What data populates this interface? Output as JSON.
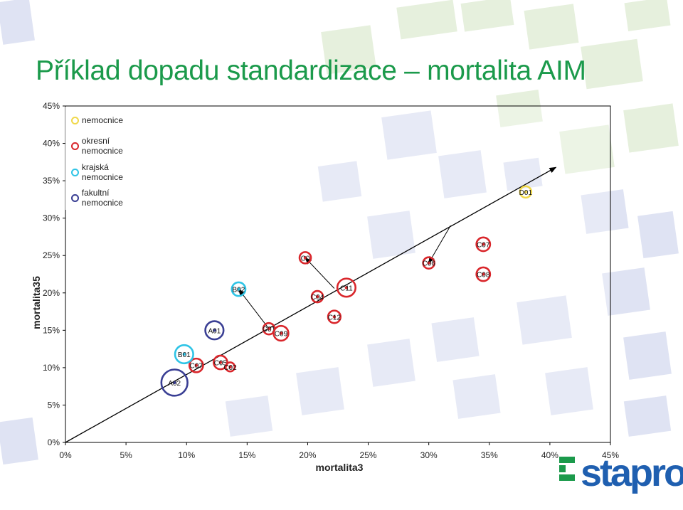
{
  "slide": {
    "title": "Příklad dopadu standardizace – mortalita AIM"
  },
  "colors": {
    "title": "#1b9a4b",
    "nemocnice": "#f0d84a",
    "okresni": "#d9262b",
    "krajska": "#2fc4e6",
    "fakultni": "#3a3f94",
    "arrow": "#000000",
    "deco_blue": "#dfe3f3",
    "deco_green": "#e6f0dd"
  },
  "legend": {
    "items": [
      {
        "label": "nemocnice",
        "color": "#f0d84a"
      },
      {
        "label": "okresní nemocnice",
        "color": "#d9262b"
      },
      {
        "label": "krajská nemocnice",
        "color": "#2fc4e6"
      },
      {
        "label": "fakultní nemocnice",
        "color": "#3a3f94"
      }
    ]
  },
  "chart_data": {
    "type": "scatter",
    "title": "",
    "xlabel": "mortalita3",
    "ylabel": "mortalita35",
    "xlim": [
      0,
      0.45
    ],
    "ylim": [
      0,
      0.45
    ],
    "xticks": [
      "0%",
      "5%",
      "10%",
      "15%",
      "20%",
      "25%",
      "30%",
      "35%",
      "40%",
      "45%"
    ],
    "yticks": [
      "0%",
      "5%",
      "10%",
      "15%",
      "20%",
      "25%",
      "30%",
      "35%",
      "40%",
      "45%"
    ],
    "grid": false,
    "legend_position": "top-left",
    "points": [
      {
        "label": "D01",
        "type": "nemocnice",
        "x": 0.38,
        "y": 0.335,
        "size": 1
      },
      {
        "label": "C07",
        "type": "okresni",
        "x": 0.345,
        "y": 0.265,
        "size": 1.2
      },
      {
        "label": "C08",
        "type": "okresni",
        "x": 0.345,
        "y": 0.225,
        "size": 1.2
      },
      {
        "label": "C06",
        "type": "okresni",
        "x": 0.3,
        "y": 0.24,
        "size": 1
      },
      {
        "label": "C0",
        "type": "okresni",
        "x": 0.198,
        "y": 0.247,
        "size": 1
      },
      {
        "label": "C04",
        "type": "okresni",
        "x": 0.208,
        "y": 0.195,
        "size": 1
      },
      {
        "label": "C11",
        "type": "okresni",
        "x": 0.232,
        "y": 0.207,
        "size": 1.6
      },
      {
        "label": "C12",
        "type": "okresni",
        "x": 0.222,
        "y": 0.168,
        "size": 1.1
      },
      {
        "label": "C01",
        "type": "okresni",
        "x": 0.168,
        "y": 0.152,
        "size": 1
      },
      {
        "label": "C09",
        "type": "okresni",
        "x": 0.178,
        "y": 0.146,
        "size": 1.3
      },
      {
        "label": "C05",
        "type": "okresni",
        "x": 0.128,
        "y": 0.107,
        "size": 1.2
      },
      {
        "label": "C02",
        "type": "okresni",
        "x": 0.136,
        "y": 0.101,
        "size": 0.8
      },
      {
        "label": "C07",
        "type": "okresni",
        "x": 0.108,
        "y": 0.103,
        "size": 1.2
      },
      {
        "label": "B02",
        "type": "krajska",
        "x": 0.143,
        "y": 0.205,
        "size": 1.2
      },
      {
        "label": "B01",
        "type": "krajska",
        "x": 0.098,
        "y": 0.118,
        "size": 1.6
      },
      {
        "label": "A01",
        "type": "fakultni",
        "x": 0.123,
        "y": 0.15,
        "size": 1.6
      },
      {
        "label": "A02",
        "type": "fakultni",
        "x": 0.09,
        "y": 0.08,
        "size": 2.3
      }
    ],
    "trend_arrow": {
      "from": [
        0,
        0
      ],
      "to": [
        0.405,
        0.368
      ]
    },
    "shift_arrows": [
      {
        "from": [
          0.168,
          0.152
        ],
        "to": [
          0.143,
          0.205
        ]
      },
      {
        "from": [
          0.222,
          0.206
        ],
        "to": [
          0.198,
          0.247
        ]
      },
      {
        "from": [
          0.318,
          0.29
        ],
        "to": [
          0.3,
          0.24
        ]
      }
    ]
  },
  "logo": {
    "text": "stapro"
  }
}
